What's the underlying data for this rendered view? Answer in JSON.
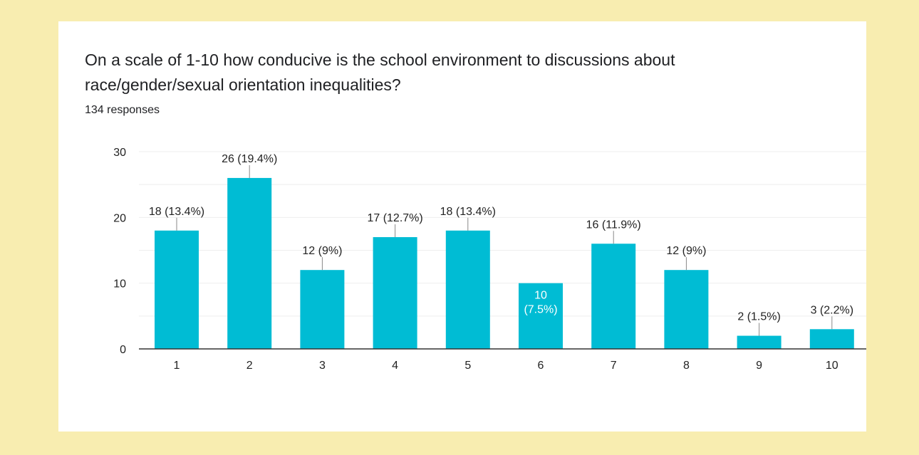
{
  "question": {
    "title": "On a scale of 1-10 how conducive is the school environment to discussions about race/gender/sexual orientation inequalities?",
    "responses": "134 responses"
  },
  "colors": {
    "page_background": "#f8edb0",
    "card_background": "#ffffff",
    "bar": "#00bcd4",
    "gridline": "#eeeeee",
    "axis": "#333333"
  },
  "chart_data": {
    "type": "bar",
    "categories": [
      "1",
      "2",
      "3",
      "4",
      "5",
      "6",
      "7",
      "8",
      "9",
      "10"
    ],
    "values": [
      18,
      26,
      12,
      17,
      18,
      10,
      16,
      12,
      2,
      3
    ],
    "data_labels": [
      "18 (13.4%)",
      "26 (19.4%)",
      "12 (9%)",
      "17 (12.7%)",
      "18 (13.4%)",
      "10 (7.5%)",
      "16 (11.9%)",
      "12 (9%)",
      "2 (1.5%)",
      "3 (2.2%)"
    ],
    "yticks": [
      "0",
      "10",
      "20",
      "30"
    ],
    "ylim": [
      0,
      30
    ],
    "grid": true,
    "title": "",
    "xlabel": "",
    "ylabel": ""
  }
}
